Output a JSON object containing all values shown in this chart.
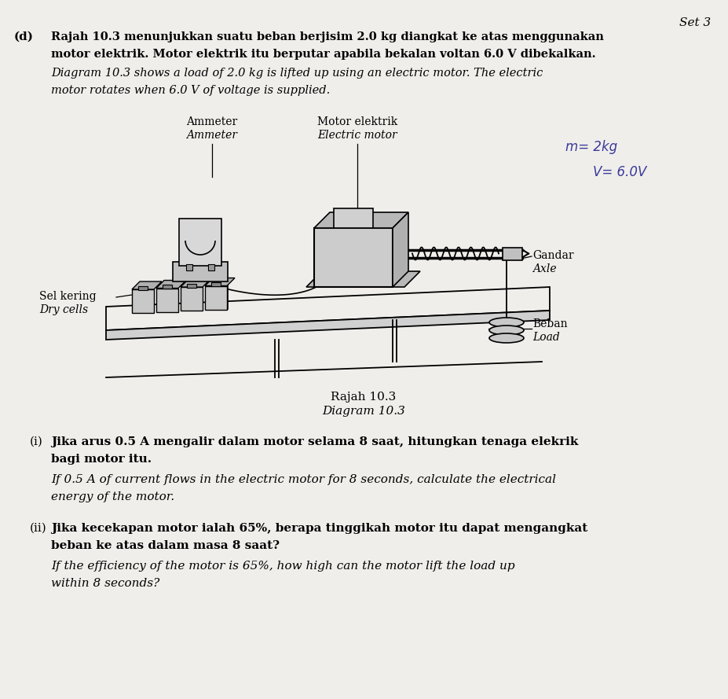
{
  "background_color": "#f0eeeb",
  "page_width": 9.27,
  "page_height": 8.89,
  "set_label": "Set 3",
  "section_label": "(d)",
  "intro_text_malay_1": "Rajah 10.3 menunjukkan suatu beban berjisim 2.0 kg diangkat ke atas menggunakan",
  "intro_text_malay_2": "motor elektrik. Motor elektrik itu berputar apabila bekalan voltan 6.0 V dibekalkan.",
  "intro_text_english_1": "Diagram 10.3 shows a load of 2.0 kg is lifted up using an electric motor. The electric",
  "intro_text_english_2": "motor rotates when 6.0 V of voltage is supplied.",
  "diagram_caption_malay": "Rajah 10.3",
  "diagram_caption_english": "Diagram 10.3",
  "annotation_m": "m= 2kg",
  "annotation_v": "V= 6.0V",
  "label_ammeter_malay": "Ammeter",
  "label_ammeter_english": "Ammeter",
  "label_motor_malay": "Motor elektrik",
  "label_motor_english": "Electric motor",
  "label_axle_malay": "Gandar",
  "label_axle_english": "Axle",
  "label_cells_malay": "Sel kering",
  "label_cells_english": "Dry cells",
  "label_load_malay": "Beban",
  "label_load_english": "Load",
  "q1_label": "(i)",
  "q1_malay_1": "Jika arus 0.5 A mengalir dalam motor selama 8 saat, hitungkan tenaga elekrik",
  "q1_malay_2": "bagi motor itu.",
  "q1_english_1": "If 0.5 A of current flows in the electric motor for 8 seconds, calculate the electrical",
  "q1_english_2": "energy of the motor.",
  "q2_label": "(ii)",
  "q2_malay_1": "Jika kecekapan motor ialah 65%, berapa tinggikah motor itu dapat mengangkat",
  "q2_malay_2": "beban ke atas dalam masa 8 saat?",
  "q2_english_1": "If the efficiency of the motor is 65%, how high can the motor lift the load up",
  "q2_english_2": "within 8 seconds?"
}
